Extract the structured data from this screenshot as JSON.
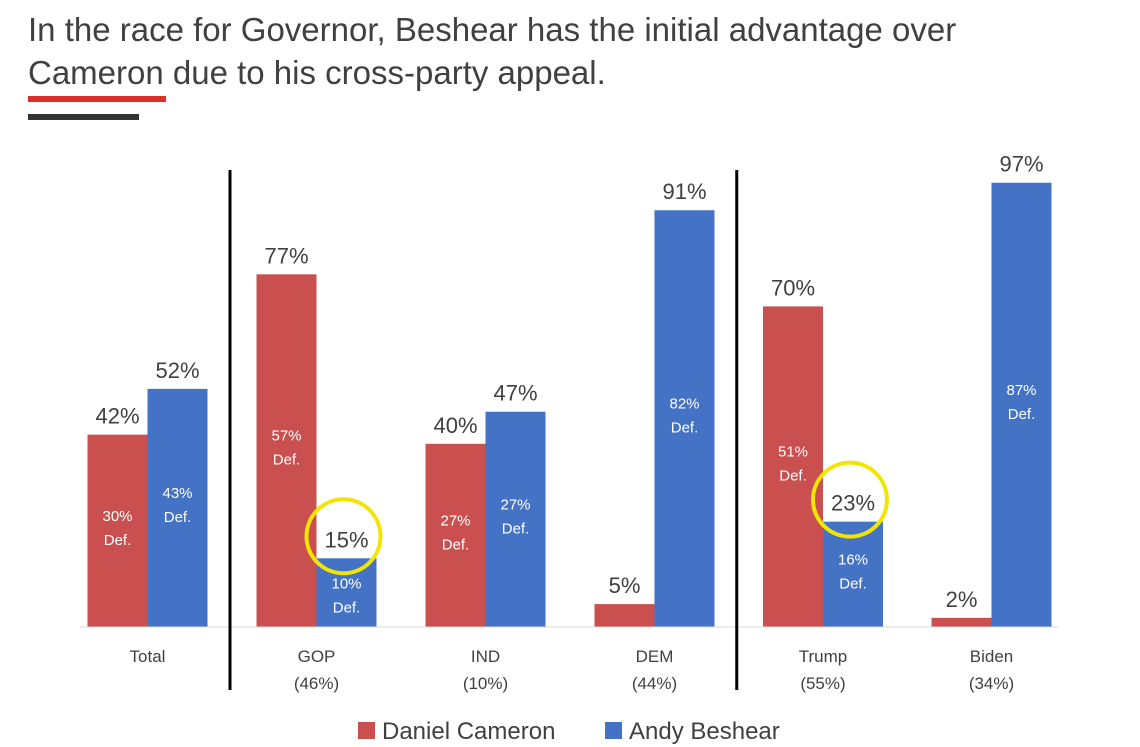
{
  "title": "In the race for Governor, Beshear has the initial advantage over Cameron due to his cross-party appeal.",
  "colors": {
    "cameron": "#c9504f",
    "beshear": "#4472c4",
    "highlight": "#f2e600",
    "rule_red": "#d9302c",
    "rule_dark": "#333333"
  },
  "chart_data": {
    "type": "bar",
    "categories": [
      {
        "label": "Total",
        "sub": ""
      },
      {
        "label": "GOP",
        "sub": "(46%)"
      },
      {
        "label": "IND",
        "sub": "(10%)"
      },
      {
        "label": "DEM",
        "sub": "(44%)"
      },
      {
        "label": "Trump",
        "sub": "(55%)"
      },
      {
        "label": "Biden",
        "sub": "(34%)"
      }
    ],
    "series": [
      {
        "name": "Daniel Cameron",
        "values": [
          42,
          77,
          40,
          5,
          70,
          2
        ],
        "definite": [
          "30%",
          "57%",
          "27%",
          null,
          "51%",
          null
        ]
      },
      {
        "name": "Andy Beshear",
        "values": [
          52,
          15,
          47,
          91,
          23,
          97
        ],
        "definite": [
          "43%",
          "10%",
          "27%",
          "82%",
          "16%",
          "87%"
        ]
      }
    ],
    "definite_suffix": "Def.",
    "highlighted": [
      {
        "series": 1,
        "category": 1
      },
      {
        "series": 1,
        "category": 4
      }
    ],
    "group_separators_after": [
      0,
      3
    ],
    "ylim": [
      0,
      100
    ],
    "legend": "bottom",
    "grid": false
  }
}
